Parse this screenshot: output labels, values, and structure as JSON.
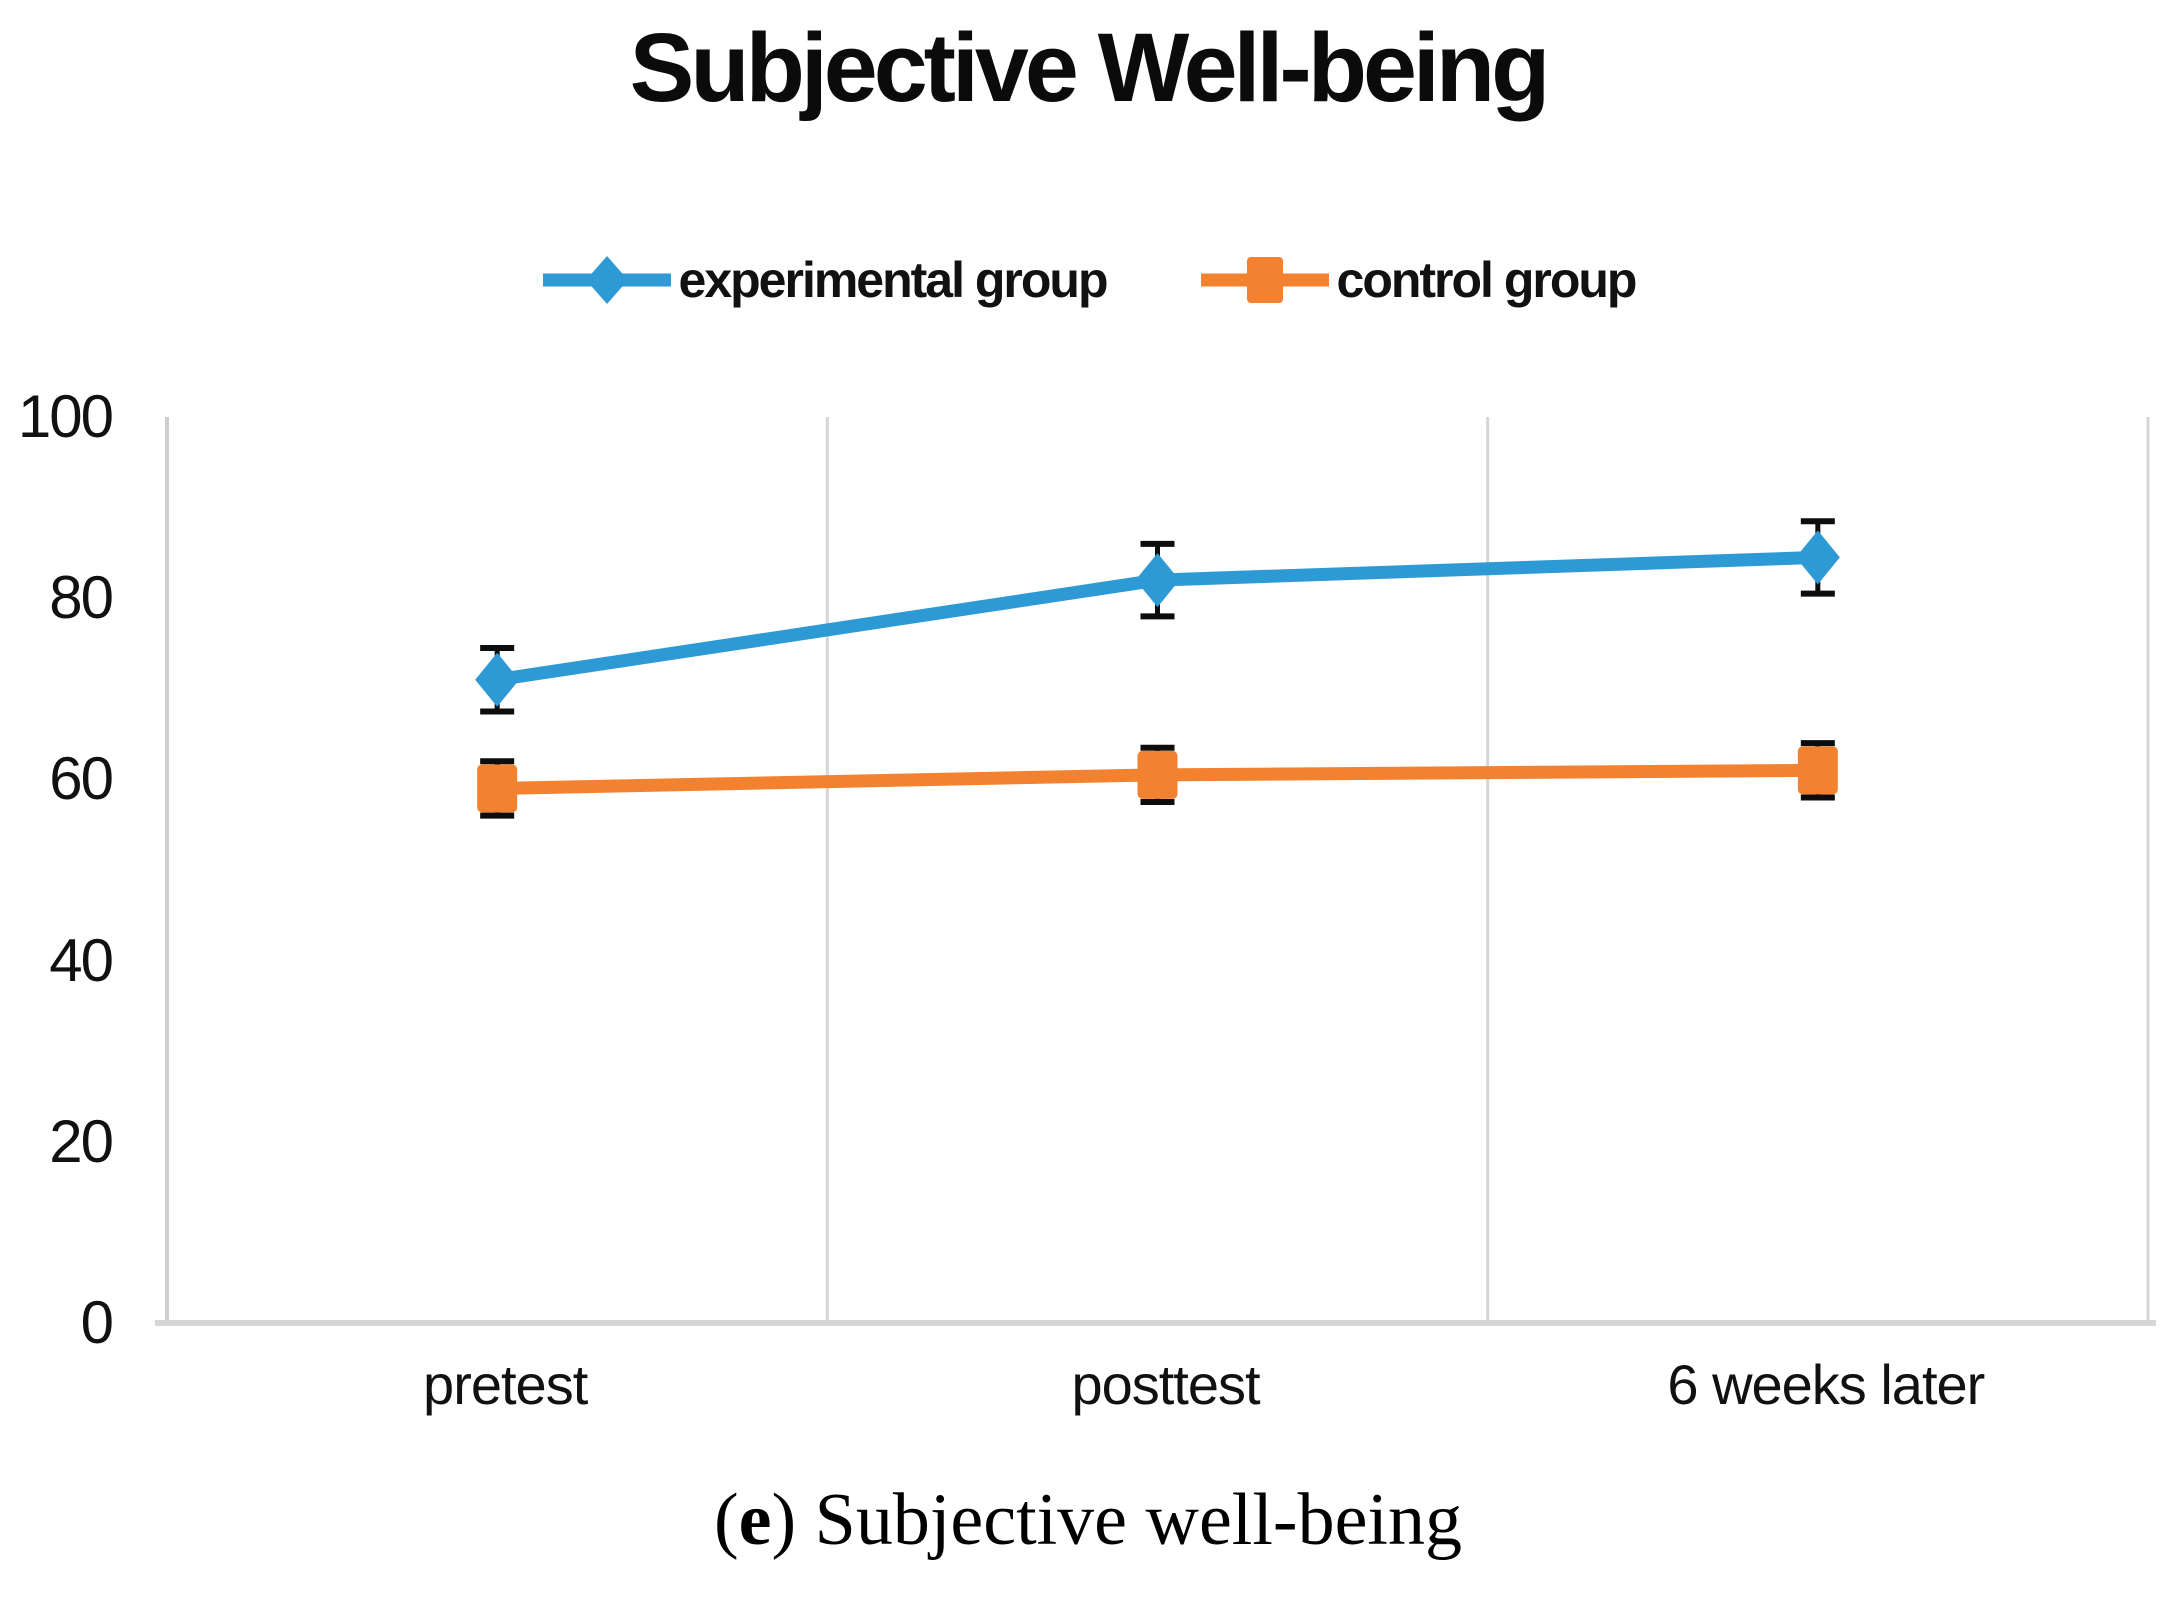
{
  "title": "Subjective Well-being",
  "caption": {
    "open": "(",
    "letter": "e",
    "rest": ") Subjective well-being"
  },
  "chart_data": {
    "type": "line",
    "title": "Subjective Well-being",
    "categories": [
      "pretest",
      "posttest",
      "6 weeks later"
    ],
    "series": [
      {
        "name": "experimental group",
        "color": "#2E9AD5",
        "marker": "diamond",
        "values": [
          71,
          82,
          84.5
        ],
        "error": [
          3.5,
          4,
          4
        ]
      },
      {
        "name": "control group",
        "color": "#F28230",
        "marker": "square",
        "values": [
          59,
          60.5,
          61
        ],
        "error": [
          3,
          3,
          3
        ]
      }
    ],
    "xlabel": "",
    "ylabel": "",
    "ylim": [
      0,
      100
    ],
    "yticks": [
      0,
      20,
      40,
      60,
      80,
      100
    ],
    "grid": "vertical-category-boundaries",
    "legend_position": "top",
    "error_bar_color": "#0d0d0d",
    "axis_color": "#d6d6d6"
  }
}
